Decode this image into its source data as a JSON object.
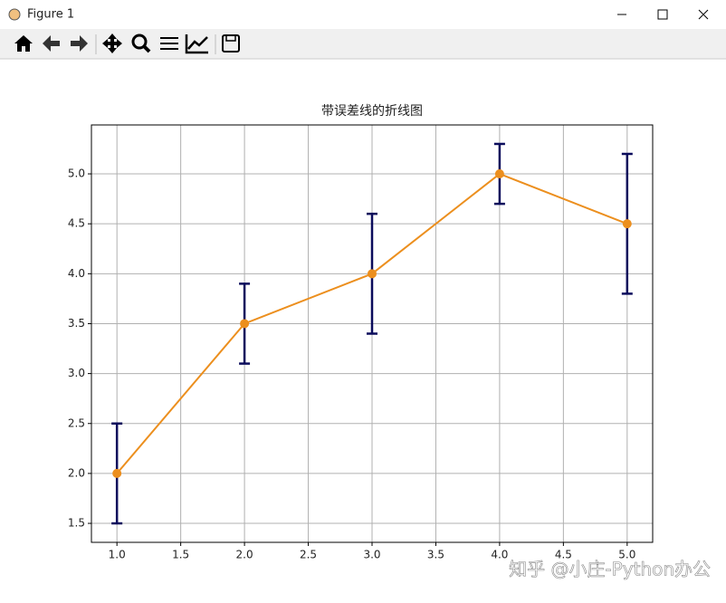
{
  "window": {
    "title": "Figure 1"
  },
  "watermark": "知乎 @小庄-Python办公",
  "chart_data": {
    "type": "errorbar-line",
    "title": "带误差线的折线图",
    "x": [
      1,
      2,
      3,
      4,
      5
    ],
    "values": [
      2,
      3.5,
      4,
      5,
      4.5
    ],
    "errors": [
      0.5,
      0.4,
      0.6,
      0.3,
      0.7
    ],
    "color": "#ec8f1e",
    "error_color": "#0b0c5c",
    "xlim": [
      0.8,
      5.2
    ],
    "ylim": [
      1.31,
      5.49
    ],
    "xticks": [
      {
        "value": 1,
        "label": "1.0"
      },
      1.5,
      {
        "value": 2,
        "label": "2.0"
      },
      2.5,
      {
        "value": 3,
        "label": "3.0"
      },
      3.5,
      {
        "value": 4,
        "label": "4.0"
      },
      4.5,
      {
        "value": 5,
        "label": "5.0"
      }
    ],
    "yticks": [
      1.5,
      {
        "value": 2,
        "label": "2.0"
      },
      2.5,
      {
        "value": 3,
        "label": "3.0"
      },
      3.5,
      {
        "value": 4,
        "label": "4.0"
      },
      4.5,
      {
        "value": 5,
        "label": "5.0"
      }
    ],
    "grid": true
  }
}
